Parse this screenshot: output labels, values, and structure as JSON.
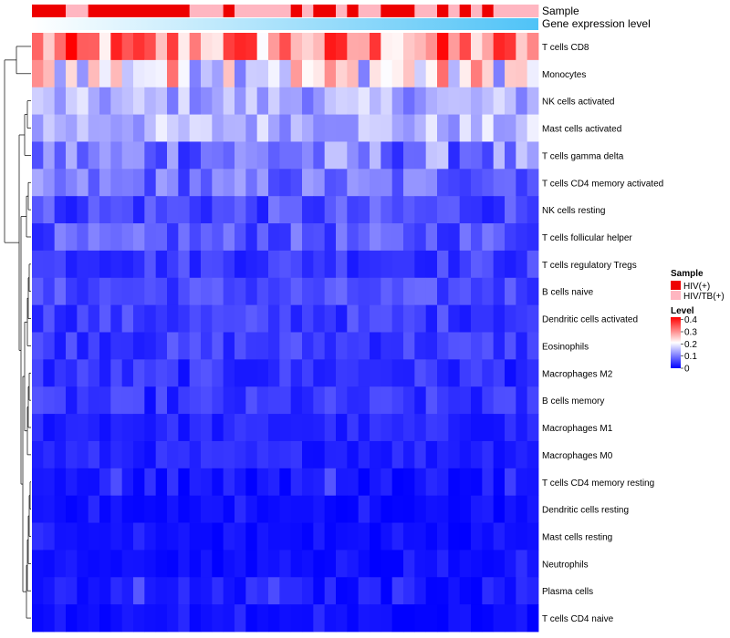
{
  "chart_data": {
    "type": "heatmap",
    "title": "",
    "annotation_labels": {
      "sample": "Sample",
      "gene_expression": "Gene expression level"
    },
    "rows": [
      "T cells CD8",
      "Monocytes",
      "NK cells activated",
      "Mast cells activated",
      "T cells gamma delta",
      "T cells CD4 memory activated",
      "NK cells resting",
      "T cells follicular helper",
      "T cells regulatory  Tregs",
      "B cells naive",
      "Dendritic cells activated",
      "Eosinophils",
      "Macrophages M2",
      "B cells memory",
      "Macrophages M1",
      "Macrophages M0",
      "T cells CD4 memory resting",
      "Dendritic cells resting",
      "Mast cells resting",
      "Neutrophils",
      "Plasma cells",
      "T cells CD4 naive"
    ],
    "num_columns": 45,
    "sample_groups": [
      "HIV(+)",
      "HIV(+)",
      "HIV(+)",
      "HIV/TB(+)",
      "HIV/TB(+)",
      "HIV(+)",
      "HIV(+)",
      "HIV(+)",
      "HIV(+)",
      "HIV(+)",
      "HIV(+)",
      "HIV(+)",
      "HIV(+)",
      "HIV(+)",
      "HIV/TB(+)",
      "HIV/TB(+)",
      "HIV/TB(+)",
      "HIV(+)",
      "HIV/TB(+)",
      "HIV/TB(+)",
      "HIV/TB(+)",
      "HIV/TB(+)",
      "HIV/TB(+)",
      "HIV(+)",
      "HIV/TB(+)",
      "HIV(+)",
      "HIV(+)",
      "HIV/TB(+)",
      "HIV(+)",
      "HIV/TB(+)",
      "HIV/TB(+)",
      "HIV(+)",
      "HIV(+)",
      "HIV(+)",
      "HIV/TB(+)",
      "HIV/TB(+)",
      "HIV(+)",
      "HIV/TB(+)",
      "HIV(+)",
      "HIV/TB(+)",
      "HIV(+)",
      "HIV/TB(+)",
      "HIV/TB(+)",
      "HIV/TB(+)",
      "HIV/TB(+)"
    ],
    "row_mean_levels": [
      0.3,
      0.22,
      0.14,
      0.15,
      0.1,
      0.09,
      0.06,
      0.07,
      0.05,
      0.06,
      0.05,
      0.05,
      0.04,
      0.04,
      0.03,
      0.03,
      0.02,
      0.01,
      0.01,
      0.01,
      0.02,
      0.01
    ],
    "row_level_spread": [
      0.12,
      0.12,
      0.05,
      0.05,
      0.07,
      0.05,
      0.04,
      0.04,
      0.03,
      0.03,
      0.03,
      0.03,
      0.03,
      0.03,
      0.02,
      0.02,
      0.02,
      0.01,
      0.01,
      0.01,
      0.02,
      0.01
    ],
    "level_range": [
      0,
      0.42
    ],
    "legend": {
      "sample_title": "Sample",
      "sample_entries": [
        {
          "label": "HIV(+)",
          "color": "#ee0000"
        },
        {
          "label": "HIV/TB(+)",
          "color": "#ffb6c1"
        }
      ],
      "level_title": "Level",
      "level_ticks": [
        {
          "value": 0.4,
          "label": "0.4"
        },
        {
          "value": 0.3,
          "label": "0.3"
        },
        {
          "value": 0.2,
          "label": "0.2"
        },
        {
          "value": 0.1,
          "label": "0.1"
        },
        {
          "value": 0,
          "label": "0"
        }
      ]
    },
    "colors": {
      "low": "#0000ff",
      "mid": "#ffffff",
      "high": "#ff0000",
      "gene_gradient_start": "#ffffff",
      "gene_gradient_end": "#4fc3f7",
      "dendrogram": "#000000"
    }
  }
}
